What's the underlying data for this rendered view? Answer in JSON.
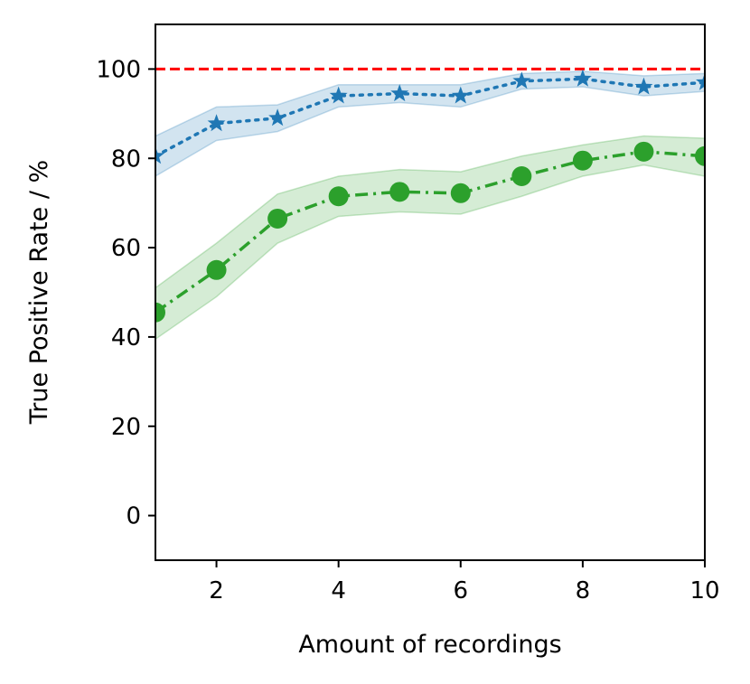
{
  "chart_data": {
    "type": "line",
    "xlabel": "Amount of recordings",
    "ylabel": "True Positive Rate / %",
    "xlim": [
      1,
      10
    ],
    "ylim": [
      -10,
      110
    ],
    "x_ticks": [
      2,
      4,
      6,
      8,
      10
    ],
    "y_ticks": [
      0,
      20,
      40,
      60,
      80,
      100
    ],
    "grid": false,
    "reference_line": {
      "y": 100,
      "color": "#ff0000",
      "style": "dashed"
    },
    "series": [
      {
        "color": "#1f77b4",
        "marker": "star",
        "linestyle": "dotted",
        "x": [
          1,
          2,
          3,
          4,
          5,
          6,
          7,
          8,
          9,
          10
        ],
        "y": [
          80.5,
          87.8,
          89.0,
          94.0,
          94.5,
          94.0,
          97.3,
          97.8,
          96.0,
          97.0
        ],
        "band_upper": [
          85.0,
          91.5,
          92.0,
          96.5,
          96.5,
          96.5,
          99.0,
          99.5,
          98.5,
          99.0
        ],
        "band_lower": [
          76.0,
          84.0,
          86.0,
          91.5,
          92.5,
          91.5,
          95.5,
          96.0,
          94.0,
          95.0
        ]
      },
      {
        "color": "#2ca02c",
        "marker": "circle",
        "linestyle": "dashdot",
        "x": [
          1,
          2,
          3,
          4,
          5,
          6,
          7,
          8,
          9,
          10
        ],
        "y": [
          45.5,
          55.0,
          66.5,
          71.5,
          72.5,
          72.2,
          76.0,
          79.5,
          81.5,
          80.5
        ],
        "band_upper": [
          51.0,
          61.0,
          72.0,
          76.0,
          77.5,
          77.0,
          80.5,
          83.0,
          85.0,
          84.5
        ],
        "band_lower": [
          39.5,
          49.0,
          61.0,
          67.0,
          68.0,
          67.5,
          71.5,
          76.0,
          78.5,
          76.0
        ]
      }
    ]
  }
}
